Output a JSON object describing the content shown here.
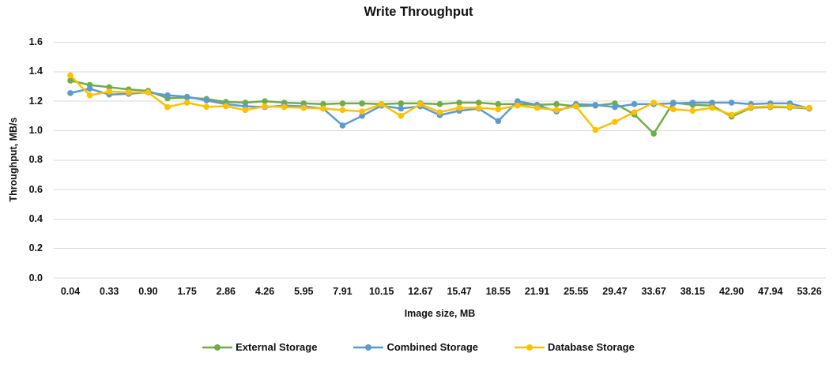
{
  "chart_data": {
    "type": "line",
    "title": "Write Throughput",
    "xlabel": "Image size, MB",
    "ylabel": "Throughput, MB/s",
    "ylim": [
      0,
      1.6
    ],
    "y_tick_labels": [
      "0.0",
      "0.2",
      "0.4",
      "0.6",
      "0.8",
      "1.0",
      "1.2",
      "1.4",
      "1.6"
    ],
    "x_tick_labels": [
      "0.04",
      "0.33",
      "0.90",
      "1.75",
      "2.86",
      "4.26",
      "5.95",
      "7.91",
      "10.15",
      "12.67",
      "15.47",
      "18.55",
      "21.91",
      "25.55",
      "29.47",
      "33.67",
      "38.15",
      "42.90",
      "47.94",
      "53.26"
    ],
    "x_label_every": 2,
    "grid": "horizontal",
    "legend_position": "bottom",
    "colors": {
      "grid": "#D9D9D9",
      "axis_text": "#111111"
    },
    "series": [
      {
        "name": "External Storage",
        "color": "#70AD47",
        "values": [
          1.34,
          1.31,
          1.295,
          1.28,
          1.27,
          1.22,
          1.225,
          1.215,
          1.195,
          1.19,
          1.2,
          1.19,
          1.185,
          1.18,
          1.185,
          1.185,
          1.18,
          1.185,
          1.185,
          1.18,
          1.19,
          1.19,
          1.18,
          1.18,
          1.175,
          1.18,
          1.165,
          1.17,
          1.185,
          1.11,
          0.98,
          1.19,
          1.175,
          1.17,
          1.095,
          1.155,
          1.16,
          1.158,
          1.15
        ]
      },
      {
        "name": "Combined Storage",
        "color": "#5B9BD5",
        "values": [
          1.255,
          1.285,
          1.245,
          1.25,
          1.26,
          1.24,
          1.23,
          1.205,
          1.18,
          1.165,
          1.16,
          1.17,
          1.165,
          1.15,
          1.035,
          1.1,
          1.17,
          1.15,
          1.165,
          1.105,
          1.135,
          1.15,
          1.065,
          1.2,
          1.175,
          1.13,
          1.18,
          1.175,
          1.16,
          1.18,
          1.18,
          1.185,
          1.19,
          1.19,
          1.19,
          1.18,
          1.185,
          1.185,
          1.15
        ]
      },
      {
        "name": "Database Storage",
        "color": "#FFC000",
        "values": [
          1.375,
          1.24,
          1.265,
          1.26,
          1.26,
          1.16,
          1.19,
          1.162,
          1.166,
          1.14,
          1.165,
          1.16,
          1.155,
          1.15,
          1.14,
          1.13,
          1.18,
          1.1,
          1.18,
          1.125,
          1.155,
          1.155,
          1.145,
          1.17,
          1.155,
          1.14,
          1.165,
          1.005,
          1.06,
          1.125,
          1.19,
          1.145,
          1.135,
          1.155,
          1.107,
          1.16,
          1.165,
          1.162,
          1.155
        ]
      }
    ]
  }
}
